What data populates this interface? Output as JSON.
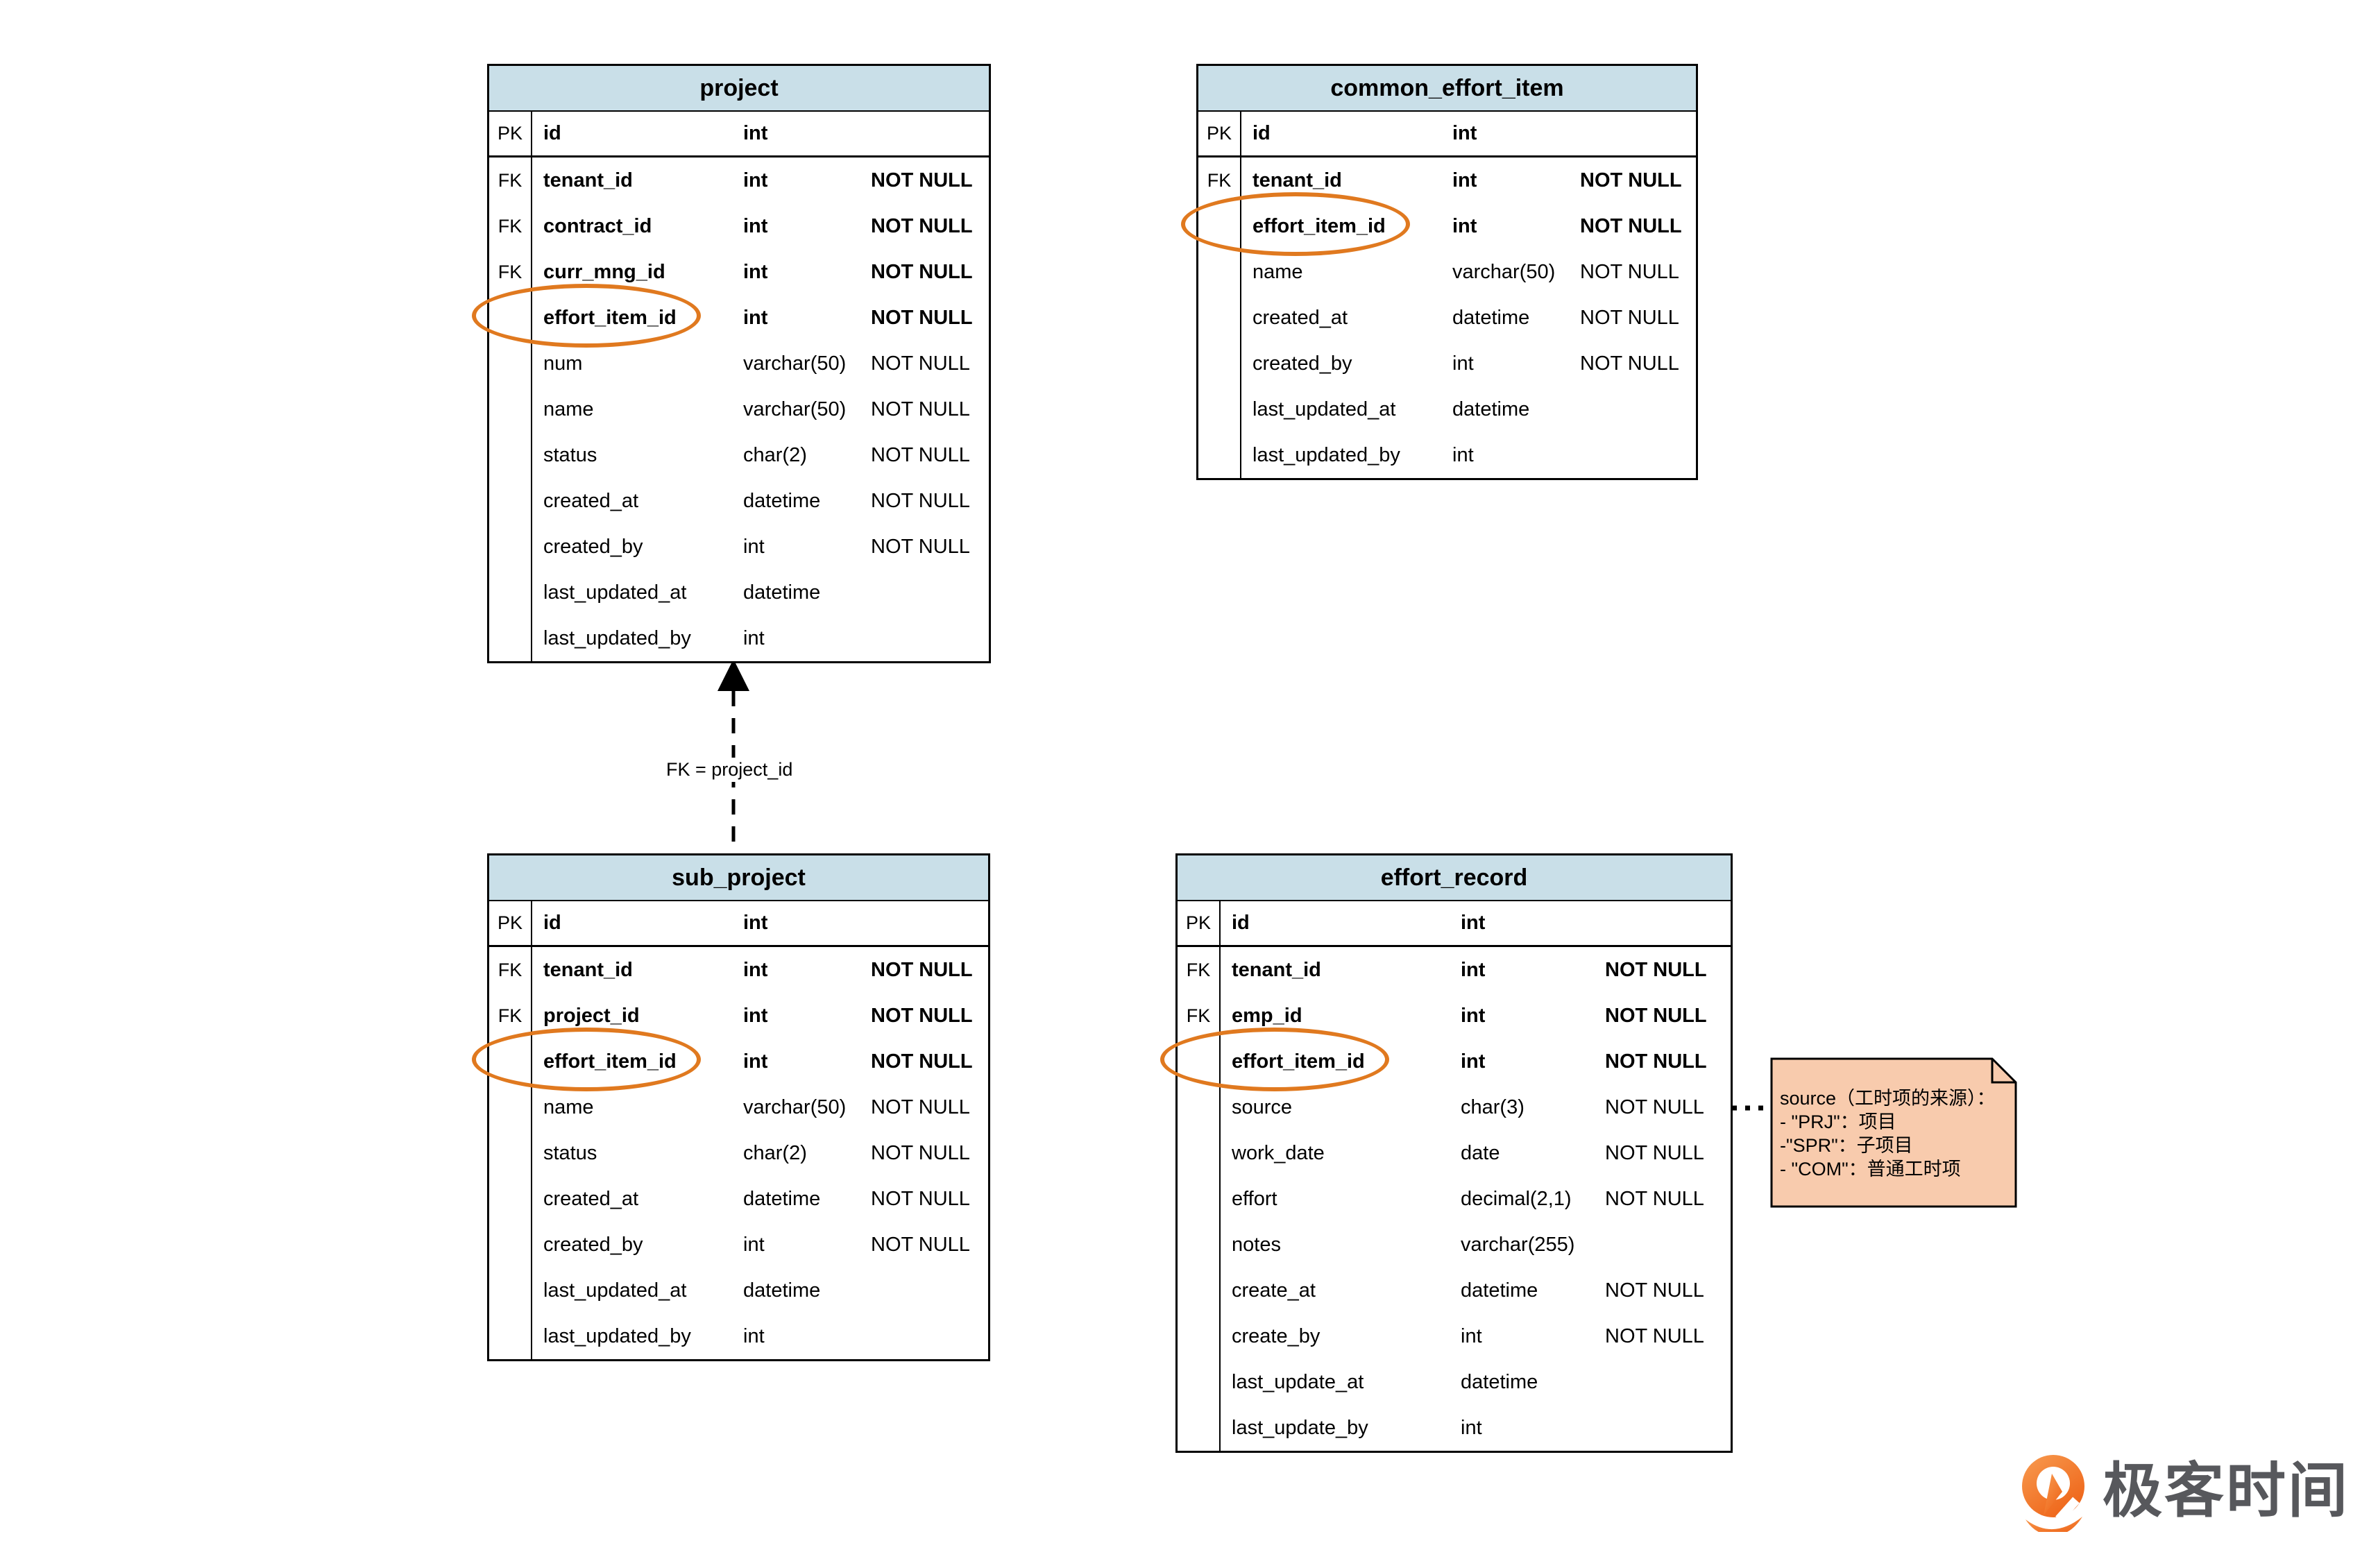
{
  "colors": {
    "table_header_bg": "#C9DFE8",
    "highlight_ellipse": "#E0791F",
    "note_bg": "#F8CBAD",
    "line_black": "#000000",
    "logo_orange": "#F16A21",
    "logo_text_gray": "#57585C"
  },
  "diagram": {
    "tables": [
      {
        "id": "project",
        "title": "project",
        "rows": [
          {
            "key": "PK",
            "name": "id",
            "type": "int",
            "constraint": "",
            "strong": true,
            "pk_separator": true
          },
          {
            "key": "FK",
            "name": "tenant_id",
            "type": "int",
            "constraint": "NOT NULL",
            "strong": true
          },
          {
            "key": "FK",
            "name": "contract_id",
            "type": "int",
            "constraint": "NOT NULL",
            "strong": true
          },
          {
            "key": "FK",
            "name": "curr_mng_id",
            "type": "int",
            "constraint": "NOT NULL",
            "strong": true
          },
          {
            "key": "",
            "name": "effort_item_id",
            "type": "int",
            "constraint": "NOT NULL",
            "strong": true,
            "highlighted": true
          },
          {
            "key": "",
            "name": "num",
            "type": "varchar(50)",
            "constraint": "NOT NULL"
          },
          {
            "key": "",
            "name": "name",
            "type": "varchar(50)",
            "constraint": "NOT NULL"
          },
          {
            "key": "",
            "name": "status",
            "type": "char(2)",
            "constraint": "NOT NULL"
          },
          {
            "key": "",
            "name": "created_at",
            "type": "datetime",
            "constraint": "NOT NULL"
          },
          {
            "key": "",
            "name": "created_by",
            "type": "int",
            "constraint": "NOT NULL"
          },
          {
            "key": "",
            "name": "last_updated_at",
            "type": "datetime",
            "constraint": ""
          },
          {
            "key": "",
            "name": "last_updated_by",
            "type": "int",
            "constraint": ""
          }
        ]
      },
      {
        "id": "common_effort_item",
        "title": "common_effort_item",
        "rows": [
          {
            "key": "PK",
            "name": "id",
            "type": "int",
            "constraint": "",
            "strong": true,
            "pk_separator": true
          },
          {
            "key": "FK",
            "name": "tenant_id",
            "type": "int",
            "constraint": "NOT NULL",
            "strong": true
          },
          {
            "key": "",
            "name": "effort_item_id",
            "type": "int",
            "constraint": "NOT NULL",
            "strong": true,
            "highlighted": true
          },
          {
            "key": "",
            "name": "name",
            "type": "varchar(50)",
            "constraint": "NOT NULL"
          },
          {
            "key": "",
            "name": "created_at",
            "type": "datetime",
            "constraint": "NOT NULL"
          },
          {
            "key": "",
            "name": "created_by",
            "type": "int",
            "constraint": "NOT NULL"
          },
          {
            "key": "",
            "name": "last_updated_at",
            "type": "datetime",
            "constraint": ""
          },
          {
            "key": "",
            "name": "last_updated_by",
            "type": "int",
            "constraint": ""
          }
        ]
      },
      {
        "id": "sub_project",
        "title": "sub_project",
        "rows": [
          {
            "key": "PK",
            "name": "id",
            "type": "int",
            "constraint": "",
            "strong": true,
            "pk_separator": true
          },
          {
            "key": "FK",
            "name": "tenant_id",
            "type": "int",
            "constraint": "NOT NULL",
            "strong": true
          },
          {
            "key": "FK",
            "name": "project_id",
            "type": "int",
            "constraint": "NOT NULL",
            "strong": true
          },
          {
            "key": "",
            "name": "effort_item_id",
            "type": "int",
            "constraint": "NOT NULL",
            "strong": true,
            "highlighted": true
          },
          {
            "key": "",
            "name": "name",
            "type": "varchar(50)",
            "constraint": "NOT NULL"
          },
          {
            "key": "",
            "name": "status",
            "type": "char(2)",
            "constraint": "NOT NULL"
          },
          {
            "key": "",
            "name": "created_at",
            "type": "datetime",
            "constraint": "NOT NULL"
          },
          {
            "key": "",
            "name": "created_by",
            "type": "int",
            "constraint": "NOT NULL"
          },
          {
            "key": "",
            "name": "last_updated_at",
            "type": "datetime",
            "constraint": ""
          },
          {
            "key": "",
            "name": "last_updated_by",
            "type": "int",
            "constraint": ""
          }
        ]
      },
      {
        "id": "effort_record",
        "title": "effort_record",
        "rows": [
          {
            "key": "PK",
            "name": "id",
            "type": "int",
            "constraint": "",
            "strong": true,
            "pk_separator": true
          },
          {
            "key": "FK",
            "name": "tenant_id",
            "type": "int",
            "constraint": "NOT NULL",
            "strong": true
          },
          {
            "key": "FK",
            "name": "emp_id",
            "type": "int",
            "constraint": "NOT NULL",
            "strong": true
          },
          {
            "key": "",
            "name": "effort_item_id",
            "type": "int",
            "constraint": "NOT NULL",
            "strong": true,
            "highlighted": true
          },
          {
            "key": "",
            "name": "source",
            "type": "char(3)",
            "constraint": "NOT NULL"
          },
          {
            "key": "",
            "name": "work_date",
            "type": "date",
            "constraint": "NOT NULL"
          },
          {
            "key": "",
            "name": "effort",
            "type": "decimal(2,1)",
            "constraint": "NOT NULL"
          },
          {
            "key": "",
            "name": "notes",
            "type": "varchar(255)",
            "constraint": ""
          },
          {
            "key": "",
            "name": "create_at",
            "type": "datetime",
            "constraint": "NOT NULL"
          },
          {
            "key": "",
            "name": "create_by",
            "type": "int",
            "constraint": "NOT NULL"
          },
          {
            "key": "",
            "name": "last_update_at",
            "type": "datetime",
            "constraint": ""
          },
          {
            "key": "",
            "name": "last_update_by",
            "type": "int",
            "constraint": ""
          }
        ]
      }
    ],
    "relation_label": "FK = project_id",
    "note": {
      "lines": [
        "source（工时项的来源）：",
        "- \"PRJ\"：项目",
        "-\"SPR\"：子项目",
        "- \"COM\"：普通工时项"
      ]
    },
    "logo": {
      "text": "极客时间"
    }
  }
}
